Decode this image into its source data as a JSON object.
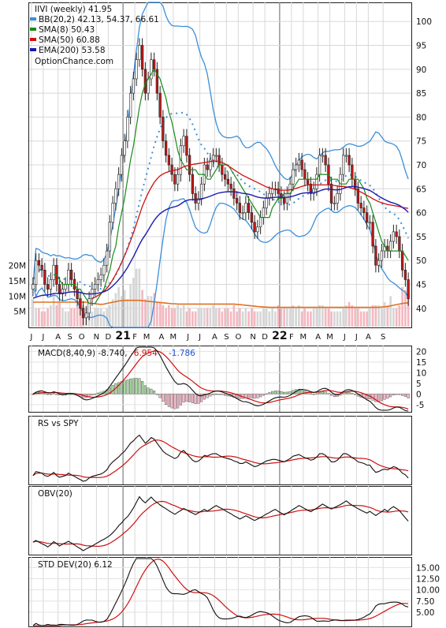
{
  "chart_data": [
    {
      "type": "candlestick",
      "legend": [
        {
          "label": "IIVI (weekly) 41.95",
          "color": "none"
        },
        {
          "label": "BB(20,2) 42.13, 54.37, 66.61",
          "color": "#3b8fd9"
        },
        {
          "label": "SMA(8) 50.43",
          "color": "#1a8a1a"
        },
        {
          "label": "SMA(50) 60.88",
          "color": "#d01010"
        },
        {
          "label": "EMA(200) 53.58",
          "color": "#1a1ab0"
        },
        {
          "label": "OptionChance.com",
          "color": "none"
        }
      ],
      "ylim": [
        36,
        104
      ],
      "price_ticks": [
        100,
        95,
        90,
        85,
        80,
        75,
        70,
        65,
        60,
        55,
        50,
        45,
        40
      ],
      "volume_ticks": [
        "20M",
        "15M",
        "10M",
        "5M"
      ],
      "volume_ylim": [
        0,
        23
      ],
      "x_labels": [
        "J",
        "J",
        "A",
        "S",
        "O",
        "N",
        "D",
        "21",
        "F",
        "M",
        "A",
        "M",
        "J",
        "J",
        "A",
        "S",
        "O",
        "N",
        "D",
        "22",
        "F",
        "M",
        "A",
        "M",
        "J",
        "J",
        "A",
        "S"
      ],
      "close": [
        45,
        50,
        49,
        48,
        45,
        44,
        46,
        49,
        45,
        43,
        44,
        45,
        48,
        46,
        44,
        42,
        40,
        38,
        39,
        42,
        44,
        45,
        46,
        47,
        49,
        52,
        58,
        62,
        65,
        68,
        72,
        75,
        80,
        85,
        88,
        92,
        95,
        90,
        85,
        88,
        92,
        90,
        85,
        80,
        75,
        72,
        70,
        68,
        66,
        68,
        74,
        76,
        72,
        68,
        64,
        62,
        63,
        66,
        70,
        69,
        71,
        72,
        72,
        70,
        68,
        67,
        66,
        65,
        63,
        62,
        60,
        60,
        62,
        60,
        58,
        56,
        57,
        59,
        61,
        63,
        64,
        65,
        65,
        64,
        63,
        62,
        64,
        66,
        69,
        70,
        71,
        69,
        67,
        66,
        64,
        65,
        68,
        72,
        72,
        70,
        66,
        62,
        62,
        64,
        68,
        72,
        72,
        70,
        67,
        65,
        62,
        61,
        60,
        58,
        58,
        53,
        49,
        50,
        52,
        53,
        52,
        54,
        56,
        55,
        52,
        48,
        46,
        42
      ],
      "sma8": [
        null,
        null,
        null,
        null,
        null,
        null,
        null,
        47,
        47,
        46,
        45,
        45,
        45,
        45,
        45,
        44,
        44,
        43,
        42,
        41,
        41,
        41,
        42,
        43,
        44,
        46,
        48,
        51,
        53,
        57,
        60,
        63,
        67,
        71,
        74,
        78,
        82,
        85,
        87,
        88,
        89,
        90,
        89,
        88,
        86,
        84,
        81,
        79,
        76,
        73,
        71,
        70,
        69,
        69,
        69,
        69,
        68,
        68,
        68,
        67,
        67,
        68,
        69,
        70,
        70,
        70,
        70,
        69,
        68,
        67,
        66,
        65,
        64,
        63,
        62,
        61,
        60,
        59,
        59,
        59,
        59,
        61,
        62,
        63,
        63,
        64,
        64,
        64,
        65,
        66,
        67,
        67,
        67,
        67,
        67,
        67,
        67,
        68,
        68,
        68,
        68,
        67,
        67,
        67,
        66,
        66,
        66,
        67,
        67,
        67,
        67,
        66,
        65,
        63,
        62,
        60,
        58,
        56,
        54,
        53,
        52,
        52,
        52,
        52,
        52,
        52,
        51,
        50
      ],
      "sma50": [
        null,
        null,
        null,
        null,
        null,
        null,
        null,
        null,
        null,
        null,
        null,
        null,
        null,
        null,
        null,
        null,
        null,
        null,
        null,
        null,
        42.1,
        42.3,
        42.7,
        43.1,
        43.6,
        44.2,
        45,
        46,
        47.1,
        48.3,
        49.6,
        51,
        52.5,
        54.1,
        55.8,
        57.6,
        59.5,
        61.3,
        62.8,
        64.1,
        65.3,
        66.3,
        67.1,
        67.7,
        68.1,
        68.4,
        68.6,
        68.8,
        68.9,
        69,
        69.3,
        69.6,
        69.8,
        70,
        70.1,
        70.2,
        70.3,
        70.4,
        70.5,
        70.6,
        70.7,
        70.8,
        70.8,
        70.7,
        70.5,
        70.2,
        69.8,
        69.4,
        69,
        68.6,
        68.2,
        67.8,
        67.5,
        67.2,
        66.9,
        66.6,
        66.3,
        66,
        65.7,
        65.4,
        65.2,
        65,
        64.9,
        64.8,
        64.7,
        64.7,
        64.7,
        64.8,
        64.9,
        65.1,
        65.3,
        65.5,
        65.7,
        65.8,
        65.8,
        65.8,
        65.8,
        65.8,
        65.8,
        65.8,
        65.8,
        65.8,
        65.7,
        65.6,
        65.5,
        65.5,
        65.4,
        65.3,
        65.1,
        64.9,
        64.6,
        64.3,
        64,
        63.6,
        63.3,
        62.9,
        62.6,
        62.3,
        62.1,
        61.9,
        61.7,
        61.6,
        61.5,
        61.4,
        61.3,
        61.1,
        61,
        60.9
      ],
      "ema200": [
        null,
        null,
        null,
        null,
        null,
        null,
        null,
        null,
        null,
        null,
        null,
        null,
        null,
        null,
        null,
        null,
        null,
        null,
        null,
        null,
        null,
        null,
        null,
        null,
        null,
        null,
        null,
        null,
        null,
        null,
        null,
        null,
        null,
        null,
        null,
        null,
        null,
        null,
        null,
        null,
        null,
        null,
        null,
        null,
        null,
        null,
        null,
        null,
        null,
        null,
        null,
        null,
        null,
        null,
        null,
        null,
        null,
        null,
        null,
        null,
        null,
        null,
        null,
        null,
        null,
        null,
        null,
        null,
        null,
        null,
        null,
        null,
        null,
        null,
        null,
        null,
        null,
        null,
        null,
        null,
        null,
        null,
        null,
        null,
        null,
        null,
        null,
        null,
        null,
        null,
        null,
        null,
        null,
        null,
        null,
        null,
        null,
        null,
        null,
        null,
        null,
        null,
        null,
        null,
        null,
        null,
        null,
        null,
        null,
        null,
        null,
        null,
        null,
        null,
        null,
        null,
        null,
        null,
        null,
        null,
        null,
        null,
        null,
        null,
        null,
        null,
        null,
        null
      ],
      "volume": [
        9,
        6,
        6,
        5,
        5,
        6,
        7,
        11,
        7,
        8,
        6,
        5,
        5,
        6,
        6,
        7,
        6,
        7,
        6,
        5,
        5,
        6,
        6,
        6,
        5,
        6,
        7,
        9,
        11,
        13,
        10,
        12,
        9,
        14,
        16,
        19,
        19,
        12,
        9,
        10,
        10,
        11,
        8,
        8,
        7,
        6,
        7,
        6,
        6,
        7,
        6,
        7,
        5,
        6,
        5,
        5,
        6,
        6,
        6,
        6,
        6,
        7,
        6,
        6,
        5,
        6,
        6,
        5,
        7,
        5,
        6,
        5,
        6,
        5,
        6,
        5,
        5,
        5,
        6,
        6,
        5,
        6,
        5,
        7,
        6,
        6,
        6,
        6,
        7,
        6,
        7,
        5,
        6,
        5,
        5,
        6,
        6,
        7,
        7,
        6,
        6,
        5,
        5,
        5,
        5,
        6,
        7,
        8,
        7,
        6,
        6,
        5,
        5,
        5,
        6,
        7,
        7,
        7,
        6,
        8,
        7,
        10,
        6,
        6,
        7,
        13,
        12,
        11
      ],
      "volume_avg": [
        8,
        8,
        8,
        8,
        8,
        8,
        8,
        8,
        8,
        8,
        8,
        8,
        8,
        8,
        8,
        8,
        8,
        8,
        8,
        7.8,
        7.6,
        7.5,
        7.4,
        7.3,
        7.4,
        7.6,
        7.8,
        8,
        8.2,
        8.4,
        8.5,
        8.6,
        8.6,
        8.6,
        8.6,
        8.6,
        8.6,
        8.5,
        8.4,
        8.3,
        8.2,
        8.1,
        8,
        7.9,
        7.8,
        7.7,
        7.6,
        7.5,
        7.5,
        7.4,
        7.4,
        7.4,
        7.4,
        7.4,
        7.4,
        7.4,
        7.4,
        7.4,
        7.4,
        7.4,
        7.4,
        7.4,
        7.4,
        7.4,
        7.4,
        7.4,
        7.4,
        7.4,
        7.4,
        7.3,
        7.2,
        7.1,
        7,
        6.9,
        6.8,
        6.7,
        6.6,
        6.5,
        6.4,
        6.4,
        6.3,
        6.3,
        6.3,
        6.3,
        6.3,
        6.3,
        6.3,
        6.3,
        6.3,
        6.3,
        6.3,
        6.3,
        6.3,
        6.3,
        6.3,
        6.3,
        6.3,
        6.3,
        6.3,
        6.3,
        6.3,
        6.3,
        6.3,
        6.3,
        6.3,
        6.3,
        6.3,
        6.3,
        6.3,
        6.3,
        6.3,
        6.3,
        6.3,
        6.3,
        6.3,
        6.3,
        6.3,
        6.3,
        6.4,
        6.5,
        6.6,
        6.8,
        7,
        7.2,
        7.4,
        7.6,
        7.7,
        7.8
      ]
    },
    {
      "type": "line",
      "title": "MACD(8,40,9) -8.740,",
      "values_label": "-6.954",
      "values_label_color": "#d01010",
      "values_label2": "-1.786",
      "values_label2_color": "#2255cc",
      "ylim": [
        -8,
        22
      ],
      "ticks": [
        20,
        15,
        10,
        5,
        0,
        -5
      ]
    },
    {
      "type": "line",
      "title": "RS vs SPY",
      "ylim": [
        0,
        1
      ]
    },
    {
      "type": "line",
      "title": "OBV(20)",
      "ylim": [
        0,
        1
      ]
    },
    {
      "type": "line",
      "title": "STD DEV(20) 6.12",
      "ylim": [
        2,
        17
      ],
      "ticks": [
        "15.00",
        "12.50",
        "10.00",
        "7.50",
        "5.00"
      ]
    }
  ]
}
